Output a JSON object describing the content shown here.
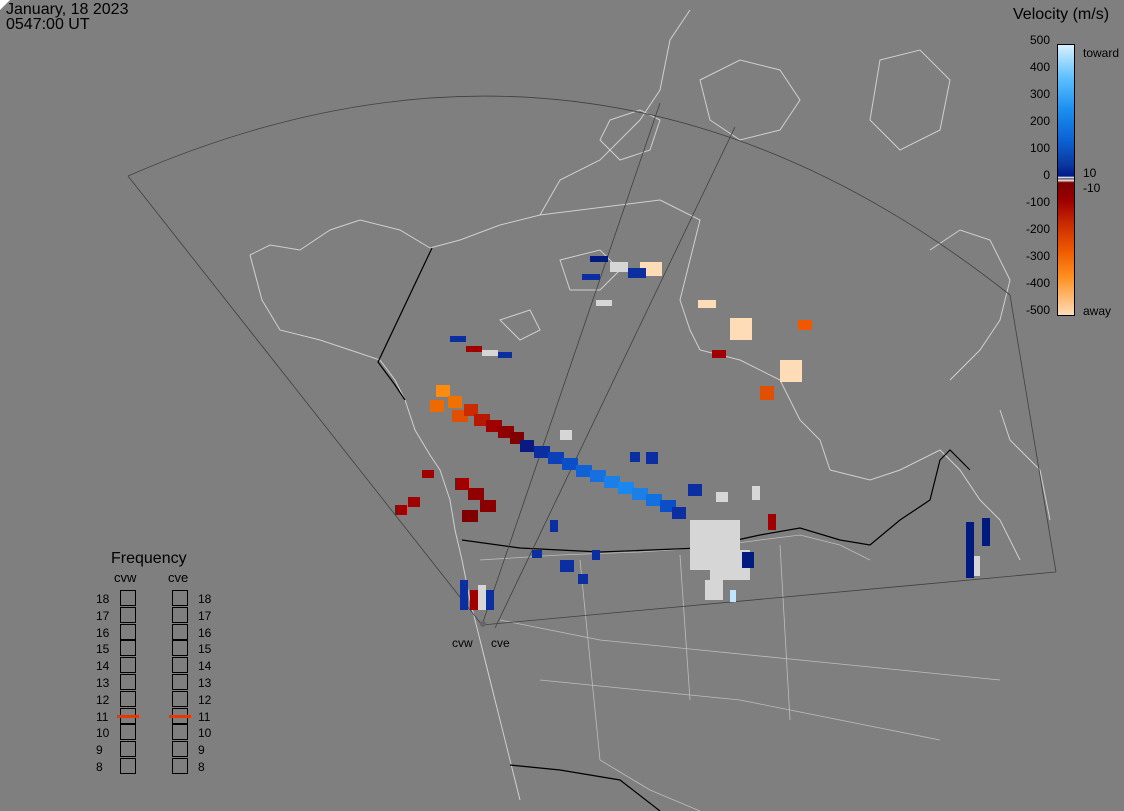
{
  "header": {
    "date": "January, 18 2023",
    "time": "0547:00 UT"
  },
  "velocity_scale": {
    "title": "Velocity (m/s)",
    "ticks": [
      "500",
      "400",
      "300",
      "200",
      "100",
      "0",
      "-100",
      "-200",
      "-300",
      "-400",
      "-500"
    ],
    "label_toward": "toward",
    "label_away": "away",
    "label_pos": "10",
    "label_neg": "-10",
    "colors": {
      "toward_max": "#d8f0ff",
      "toward_min": "#001a8a",
      "away_min": "#7a0000",
      "away_max": "#ffdcb8",
      "ground_scatter": "#d8d8d8"
    }
  },
  "frequency": {
    "title": "Frequency",
    "radars": [
      {
        "name": "cvw",
        "selected_mhz": "11"
      },
      {
        "name": "cve",
        "selected_mhz": "11"
      }
    ],
    "levels": [
      "18",
      "17",
      "16",
      "15",
      "14",
      "13",
      "12",
      "11",
      "10",
      "9",
      "8"
    ],
    "highlight_color": "#e83800"
  },
  "sites": {
    "west": "cvw",
    "east": "cve"
  }
}
